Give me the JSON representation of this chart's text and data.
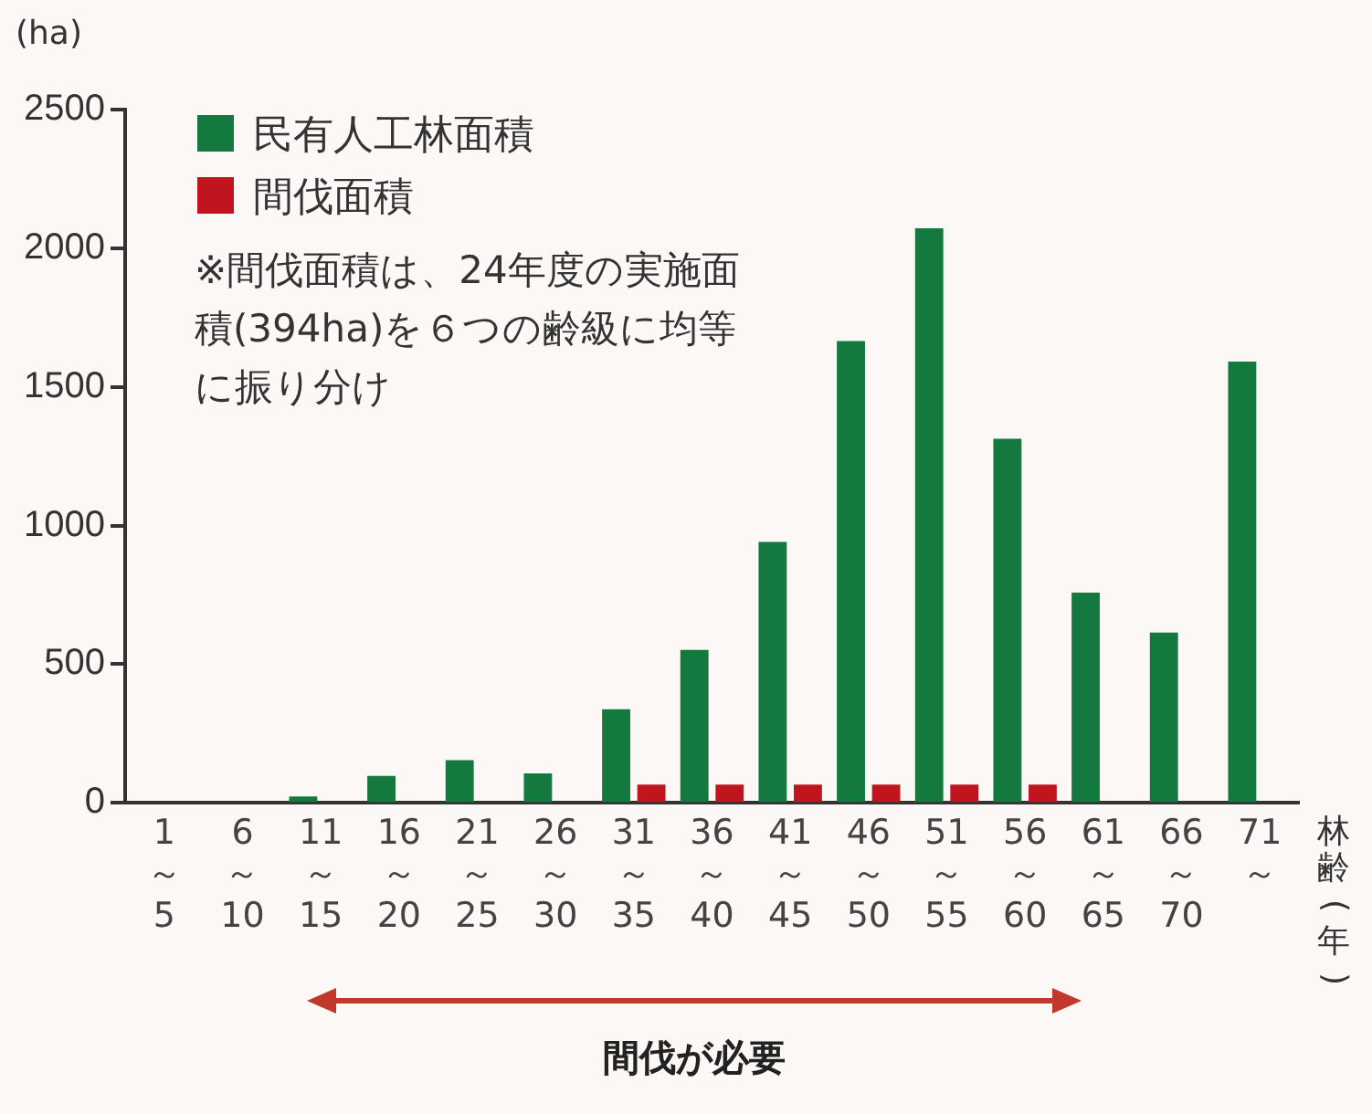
{
  "chart_data": {
    "type": "bar",
    "ylabel": "(ha)",
    "xlabel": "林齢(年)",
    "categories": [
      "1～5",
      "6～10",
      "11～15",
      "16～20",
      "21～25",
      "26～30",
      "31～35",
      "36～40",
      "41～45",
      "46～50",
      "51～55",
      "56～60",
      "61～65",
      "66～70",
      "71～"
    ],
    "series": [
      {
        "name": "民有人工林面積",
        "color": "#13793e",
        "values": [
          0,
          0,
          23,
          97,
          154,
          106,
          337,
          551,
          941,
          1665,
          2072,
          1313,
          758,
          614,
          1591
        ]
      },
      {
        "name": "間伐面積",
        "color": "#c0141e",
        "values": [
          null,
          null,
          null,
          null,
          null,
          null,
          66,
          66,
          66,
          66,
          66,
          66,
          null,
          null,
          null
        ]
      }
    ],
    "ylim": [
      0,
      2500
    ],
    "yticks": [
      0,
      500,
      1000,
      1500,
      2000,
      2500
    ],
    "grid": false,
    "legend": "top left",
    "annotations": [
      "※間伐面積は、24年度の実施面積(394ha)を６つの齢級に均等に振り分け",
      "間伐が必要"
    ]
  }
}
